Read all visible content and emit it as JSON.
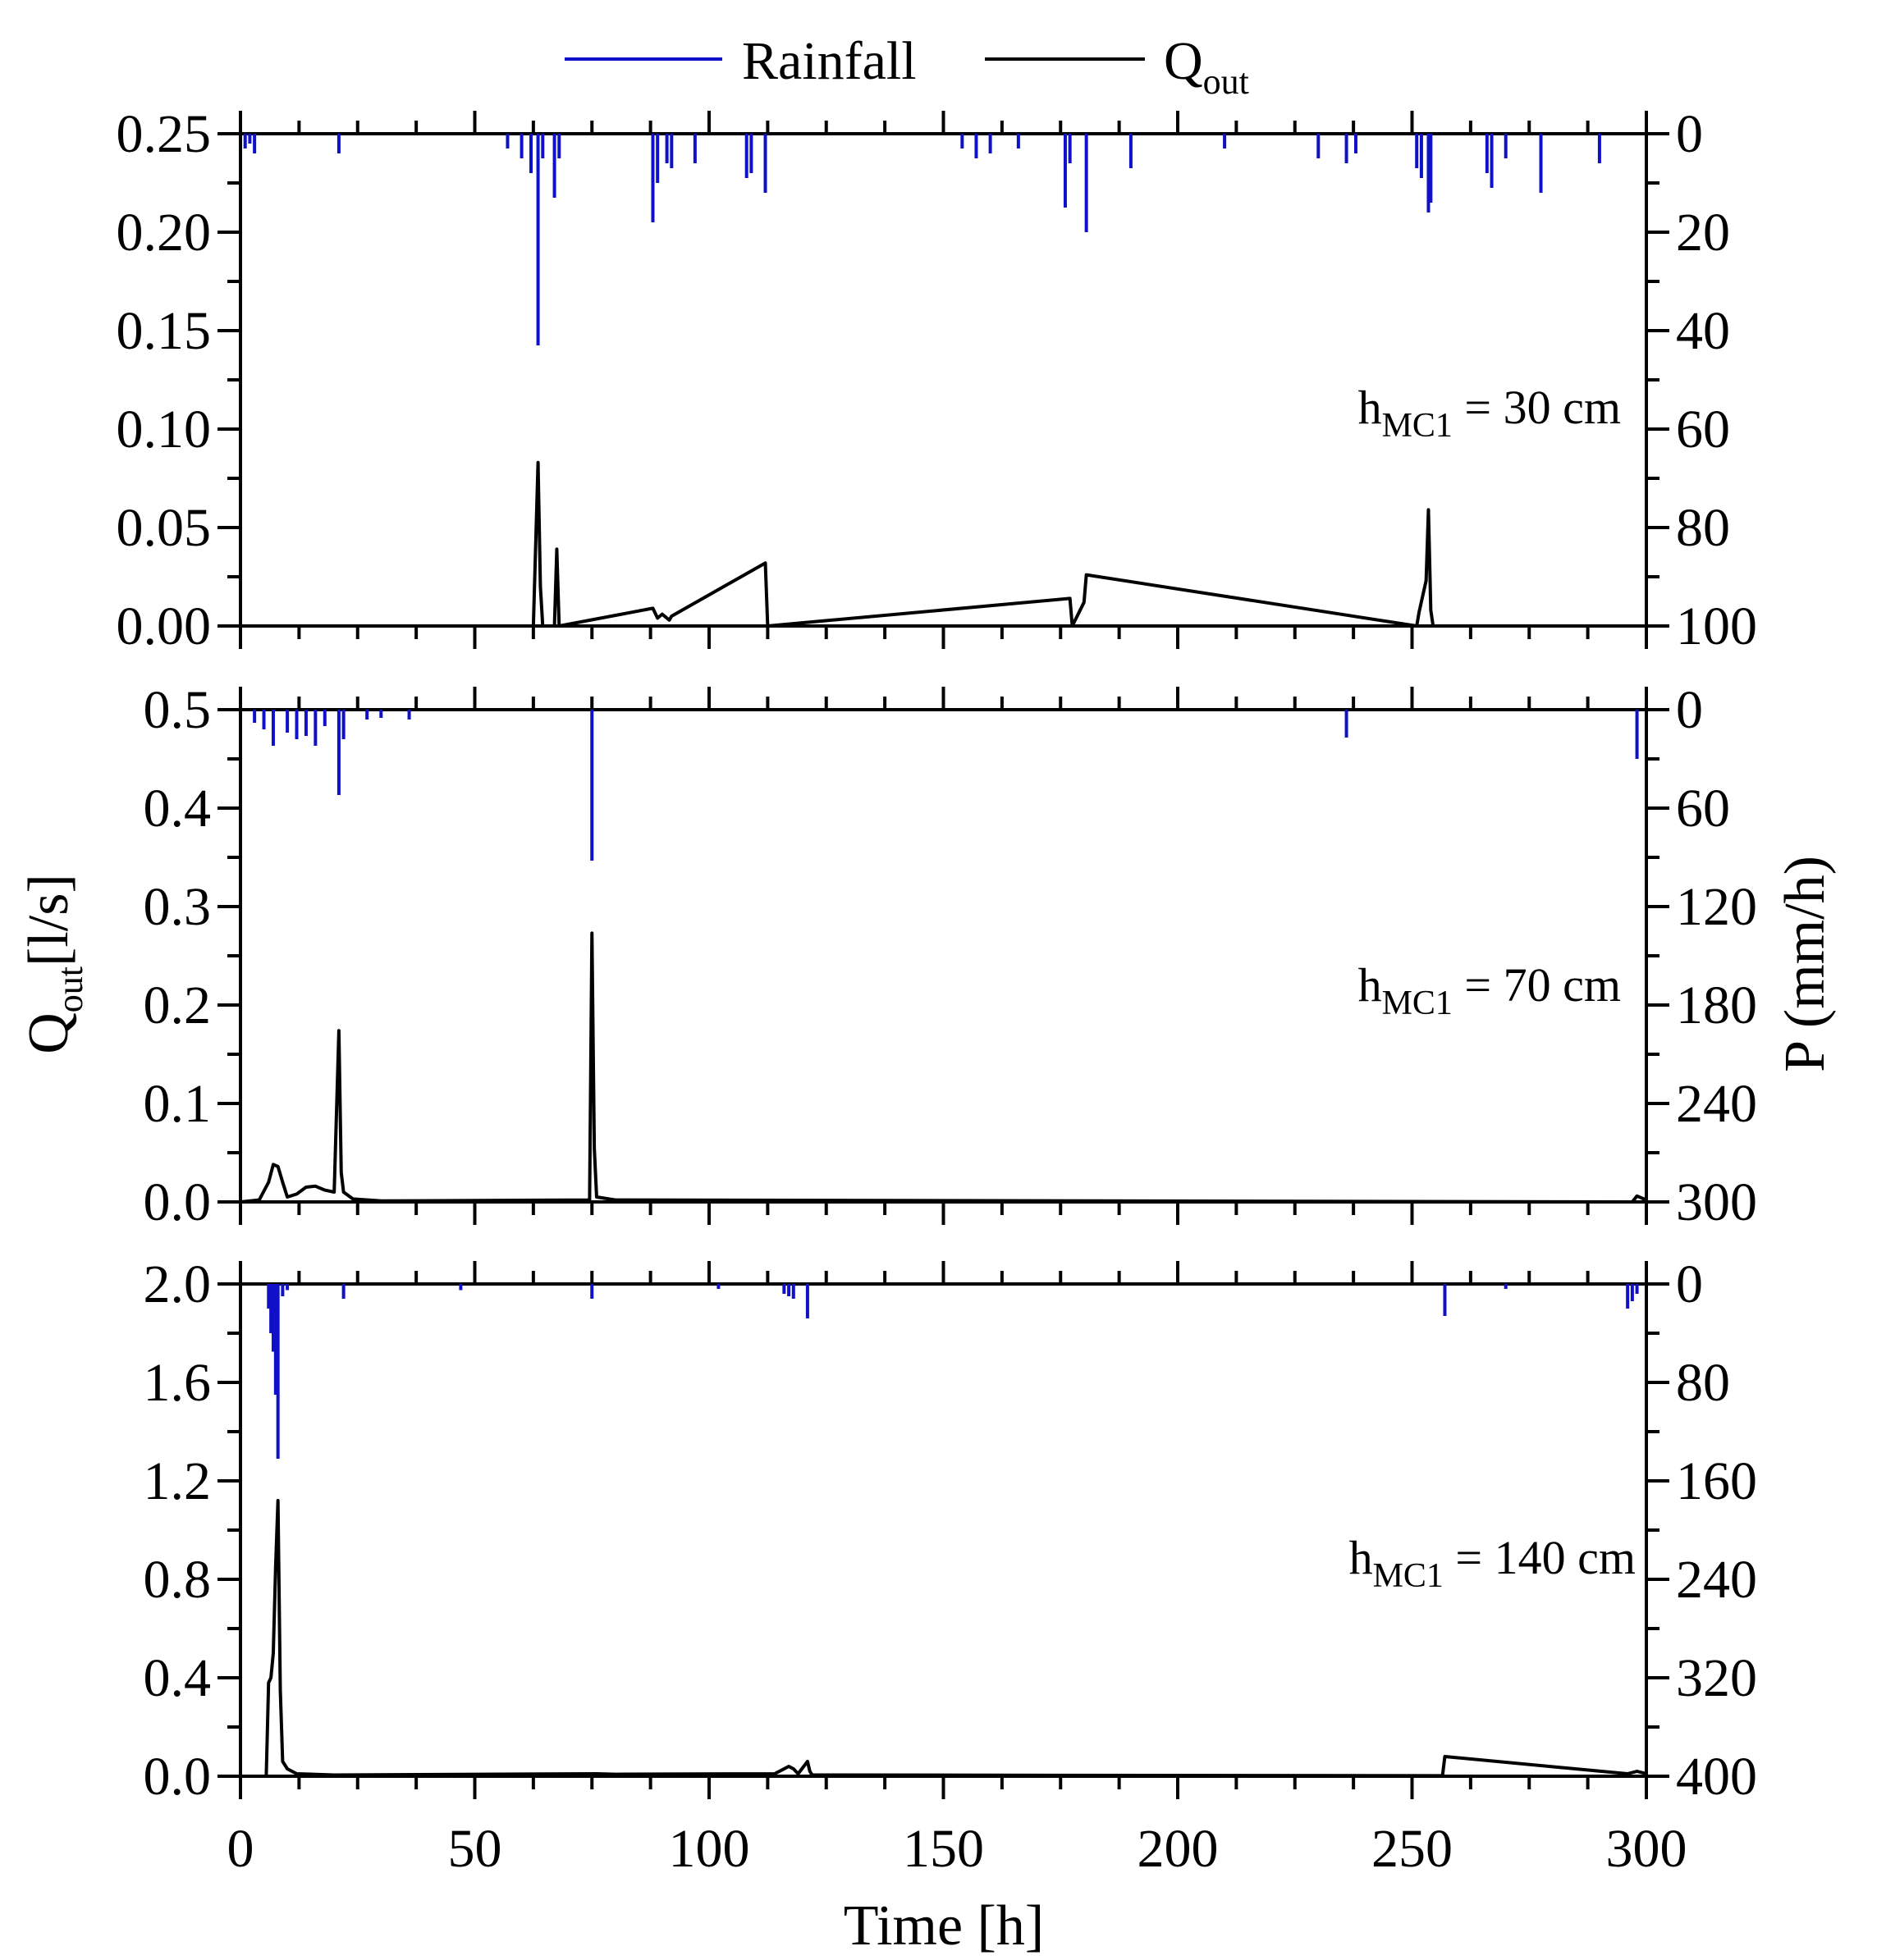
{
  "legend": {
    "rainfall": {
      "label": "Rainfall",
      "color": "#1010c8"
    },
    "qout": {
      "label": "Q",
      "sub": "out",
      "color": "#000000"
    }
  },
  "axes": {
    "xlabel": "Time [h]",
    "ylabel_left_main": "Q",
    "ylabel_left_sub": "out",
    "ylabel_left_unit": "[l/s]",
    "ylabel_right": "P (mm/h)",
    "xlim": [
      0,
      300
    ],
    "xticks": [
      0,
      50,
      100,
      150,
      200,
      250,
      300
    ],
    "xtick_labels": [
      "0",
      "50",
      "100",
      "150",
      "200",
      "250",
      "300"
    ]
  },
  "chart_data": [
    {
      "type": "line",
      "panel": "hMC1 = 30 cm",
      "annotation": {
        "h": "h",
        "sub": "MC1",
        "rest": " = 30 cm"
      },
      "ylim": [
        0,
        0.25
      ],
      "yticks_labels": [
        "0.25",
        "0.20",
        "0.15",
        "0.10",
        "0.05",
        "0.00"
      ],
      "yticks": [
        0.25,
        0.2,
        0.15,
        0.1,
        0.05,
        0.0
      ],
      "y2lim": [
        0,
        100
      ],
      "y2ticks_labels": [
        "0",
        "20",
        "40",
        "60",
        "80",
        "100"
      ],
      "y2ticks": [
        0,
        20,
        40,
        60,
        80,
        100
      ],
      "series": [
        {
          "name": "Rainfall",
          "unit": "mm/h",
          "x": [
            1,
            2,
            3,
            21,
            57,
            60,
            62,
            63.5,
            64.5,
            67,
            68,
            88,
            89,
            91,
            92,
            97,
            108,
            109,
            112,
            154,
            157,
            160,
            166,
            176,
            177,
            180.5,
            190,
            210,
            230,
            236,
            238,
            251,
            252,
            253.5,
            254,
            266,
            267,
            270,
            277.5,
            290
          ],
          "values": [
            3,
            2,
            4,
            4,
            3,
            5,
            8,
            43,
            5,
            13,
            5,
            18,
            10,
            6,
            7,
            6,
            9,
            8,
            12,
            3,
            5,
            4,
            3,
            15,
            6,
            20,
            7,
            3,
            5,
            6,
            4,
            7,
            9,
            16,
            14,
            8,
            11,
            5,
            12,
            6
          ]
        },
        {
          "name": "Qout",
          "unit": "l/s",
          "x": [
            62.5,
            63.5,
            64,
            64.5,
            67,
            67.5,
            68,
            88,
            89,
            90,
            91.5,
            92,
            112,
            112.5,
            177,
            177.5,
            180,
            180.5,
            251,
            251.5,
            253,
            253.5,
            254,
            254.5
          ],
          "values": [
            0,
            0.083,
            0.02,
            0,
            0,
            0.039,
            0,
            0.009,
            0.004,
            0.006,
            0.003,
            0.005,
            0.032,
            0,
            0.014,
            0,
            0.012,
            0.026,
            0,
            0.007,
            0.023,
            0.059,
            0.008,
            0
          ]
        }
      ]
    },
    {
      "type": "line",
      "panel": "hMC1 = 70 cm",
      "annotation": {
        "h": "h",
        "sub": "MC1",
        "rest": " = 70 cm"
      },
      "ylim": [
        0,
        0.5
      ],
      "yticks_labels": [
        "0.5",
        "0.4",
        "0.3",
        "0.2",
        "0.1",
        "0.0"
      ],
      "yticks": [
        0.5,
        0.4,
        0.3,
        0.2,
        0.1,
        0.0
      ],
      "y2lim": [
        0,
        300
      ],
      "y2ticks_labels": [
        "0",
        "60",
        "120",
        "180",
        "240",
        "300"
      ],
      "y2ticks": [
        0,
        60,
        120,
        180,
        240,
        300
      ],
      "series": [
        {
          "name": "Rainfall",
          "unit": "mm/h",
          "x": [
            3,
            5,
            7,
            10,
            12,
            14,
            16,
            18,
            21,
            22,
            27,
            30,
            36,
            75,
            236,
            298
          ],
          "values": [
            8,
            12,
            22,
            14,
            18,
            16,
            22,
            10,
            52,
            18,
            6,
            5,
            6,
            92,
            17,
            30
          ]
        },
        {
          "name": "Qout",
          "unit": "l/s",
          "x": [
            0,
            4,
            6,
            7,
            8,
            9,
            10,
            12,
            14,
            16,
            18,
            20,
            21,
            21.5,
            22,
            24,
            30,
            74.5,
            75,
            75.5,
            76,
            80,
            297,
            298,
            300
          ],
          "values": [
            0,
            0.002,
            0.02,
            0.038,
            0.036,
            0.02,
            0.005,
            0.008,
            0.015,
            0.016,
            0.012,
            0.01,
            0.174,
            0.03,
            0.01,
            0.003,
            0.001,
            0.002,
            0.273,
            0.055,
            0.005,
            0.002,
            0,
            0.006,
            0.002
          ]
        }
      ]
    },
    {
      "type": "line",
      "panel": "hMC1 = 140 cm",
      "annotation": {
        "h": "h",
        "sub": "MC1",
        "rest": " = 140 cm"
      },
      "ylim": [
        0,
        2.0
      ],
      "yticks_labels": [
        "2.0",
        "1.6",
        "1.2",
        "0.8",
        "0.4",
        "0.0"
      ],
      "yticks": [
        2.0,
        1.6,
        1.2,
        0.8,
        0.4,
        0.0
      ],
      "y2lim": [
        0,
        400
      ],
      "y2ticks_labels": [
        "0",
        "80",
        "160",
        "240",
        "320",
        "400"
      ],
      "y2ticks": [
        0,
        80,
        160,
        240,
        320,
        400
      ],
      "series": [
        {
          "name": "Rainfall",
          "unit": "mm/h",
          "x": [
            6,
            6.5,
            7,
            7.5,
            8,
            9,
            10,
            22,
            47,
            75,
            102,
            116,
            117,
            118,
            121,
            257,
            270,
            296,
            297,
            298
          ],
          "values": [
            20,
            40,
            55,
            90,
            142,
            10,
            5,
            12,
            5,
            12,
            4,
            8,
            10,
            12,
            28,
            26,
            4,
            20,
            14,
            8
          ]
        },
        {
          "name": "Qout",
          "unit": "l/s",
          "x": [
            5.5,
            6,
            6.5,
            7,
            7.5,
            8,
            8.5,
            9,
            10,
            12,
            20,
            76,
            80,
            114,
            116,
            117,
            118,
            119,
            121,
            121.5,
            122,
            256.5,
            257,
            296,
            298,
            300
          ],
          "values": [
            0,
            0.38,
            0.4,
            0.5,
            0.85,
            1.12,
            0.35,
            0.06,
            0.03,
            0.01,
            0.005,
            0.01,
            0.008,
            0.01,
            0.03,
            0.04,
            0.03,
            0.01,
            0.06,
            0.02,
            0.005,
            0.002,
            0.08,
            0.01,
            0.02,
            0.01
          ]
        }
      ]
    }
  ]
}
